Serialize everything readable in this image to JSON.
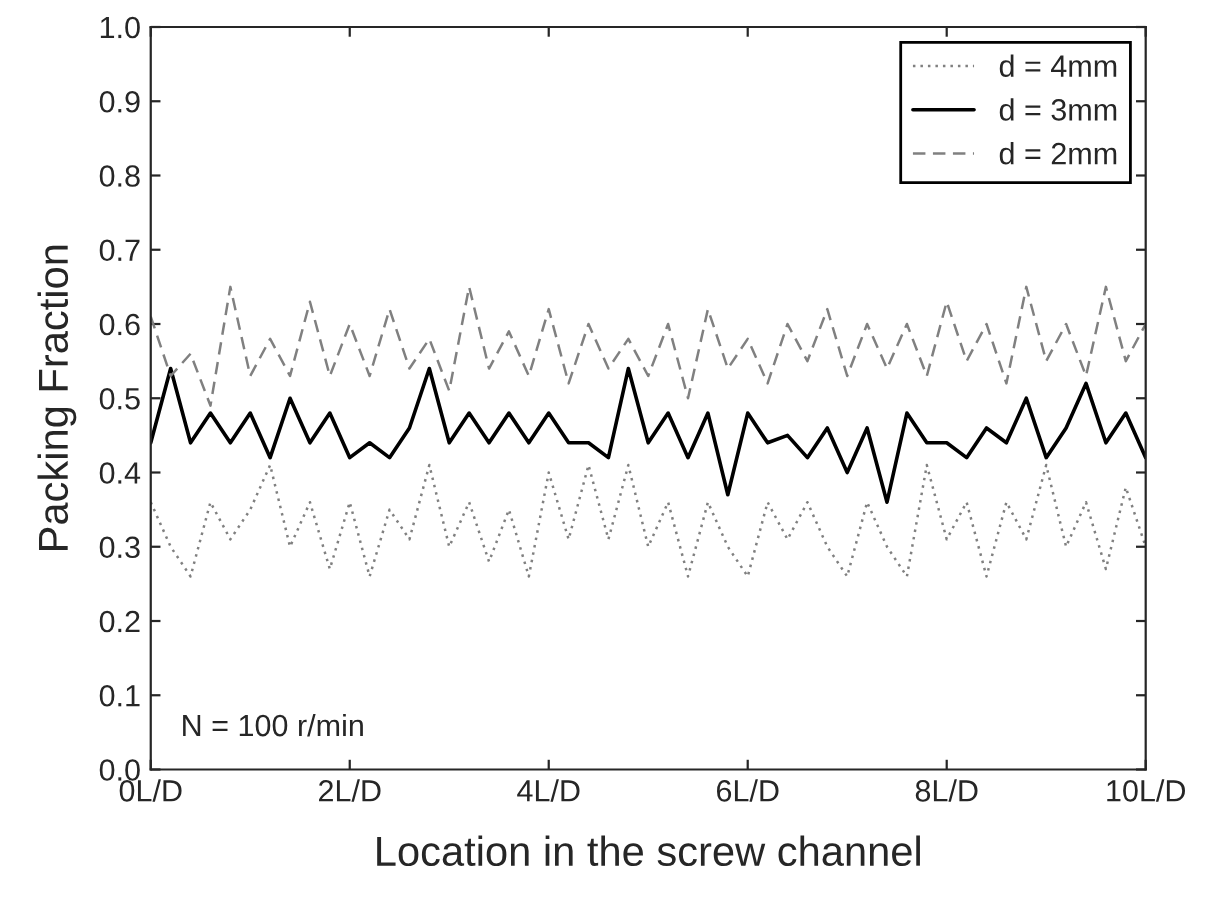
{
  "chart_data": {
    "type": "line",
    "xlabel": "Location in the screw channel",
    "ylabel": "Packing Fraction",
    "x": [
      0,
      0.2,
      0.4,
      0.6,
      0.8,
      1.0,
      1.2,
      1.4,
      1.6,
      1.8,
      2.0,
      2.2,
      2.4,
      2.6,
      2.8,
      3.0,
      3.2,
      3.4,
      3.6,
      3.8,
      4.0,
      4.2,
      4.4,
      4.6,
      4.8,
      5.0,
      5.2,
      5.4,
      5.6,
      5.8,
      6.0,
      6.2,
      6.4,
      6.6,
      6.8,
      7.0,
      7.2,
      7.4,
      7.6,
      7.8,
      8.0,
      8.2,
      8.4,
      8.6,
      8.8,
      9.0,
      9.2,
      9.4,
      9.6,
      9.8,
      10.0
    ],
    "series": [
      {
        "name": "d = 4mm",
        "color": "#808080",
        "line_style": "dotted",
        "values": [
          0.36,
          0.3,
          0.26,
          0.36,
          0.31,
          0.35,
          0.41,
          0.3,
          0.36,
          0.27,
          0.36,
          0.26,
          0.35,
          0.31,
          0.41,
          0.3,
          0.36,
          0.28,
          0.35,
          0.26,
          0.4,
          0.31,
          0.41,
          0.31,
          0.41,
          0.3,
          0.36,
          0.26,
          0.36,
          0.3,
          0.26,
          0.36,
          0.31,
          0.36,
          0.3,
          0.26,
          0.36,
          0.3,
          0.26,
          0.41,
          0.31,
          0.36,
          0.26,
          0.36,
          0.31,
          0.41,
          0.3,
          0.36,
          0.27,
          0.38,
          0.3
        ]
      },
      {
        "name": "d = 3mm",
        "color": "#000000",
        "line_style": "solid",
        "values": [
          0.44,
          0.54,
          0.44,
          0.48,
          0.44,
          0.48,
          0.42,
          0.5,
          0.44,
          0.48,
          0.42,
          0.44,
          0.42,
          0.46,
          0.54,
          0.44,
          0.48,
          0.44,
          0.48,
          0.44,
          0.48,
          0.44,
          0.44,
          0.42,
          0.54,
          0.44,
          0.48,
          0.42,
          0.48,
          0.37,
          0.48,
          0.44,
          0.45,
          0.42,
          0.46,
          0.4,
          0.46,
          0.36,
          0.48,
          0.44,
          0.44,
          0.42,
          0.46,
          0.44,
          0.5,
          0.42,
          0.46,
          0.52,
          0.44,
          0.48,
          0.42
        ]
      },
      {
        "name": "d = 2mm",
        "color": "#808080",
        "line_style": "dashed",
        "values": [
          0.61,
          0.53,
          0.56,
          0.49,
          0.65,
          0.53,
          0.58,
          0.53,
          0.63,
          0.53,
          0.6,
          0.53,
          0.62,
          0.54,
          0.58,
          0.51,
          0.65,
          0.54,
          0.59,
          0.53,
          0.62,
          0.52,
          0.6,
          0.54,
          0.58,
          0.53,
          0.6,
          0.5,
          0.62,
          0.54,
          0.58,
          0.52,
          0.6,
          0.55,
          0.62,
          0.53,
          0.6,
          0.54,
          0.6,
          0.53,
          0.63,
          0.55,
          0.6,
          0.52,
          0.65,
          0.55,
          0.6,
          0.53,
          0.65,
          0.55,
          0.6
        ]
      }
    ],
    "xlim": [
      0,
      10
    ],
    "xticks": [
      {
        "value": 0,
        "label": "0L/D"
      },
      {
        "value": 2,
        "label": "2L/D"
      },
      {
        "value": 4,
        "label": "4L/D"
      },
      {
        "value": 6,
        "label": "6L/D"
      },
      {
        "value": 8,
        "label": "8L/D"
      },
      {
        "value": 10,
        "label": "10L/D"
      }
    ],
    "ylim": [
      0,
      1.0
    ],
    "yticks": [
      {
        "value": 0,
        "label": "0.0"
      },
      {
        "value": 0.1,
        "label": "0.1"
      },
      {
        "value": 0.2,
        "label": "0.2"
      },
      {
        "value": 0.3,
        "label": "0.3"
      },
      {
        "value": 0.4,
        "label": "0.4"
      },
      {
        "value": 0.5,
        "label": "0.5"
      },
      {
        "value": 0.6,
        "label": "0.6"
      },
      {
        "value": 0.7,
        "label": "0.7"
      },
      {
        "value": 0.8,
        "label": "0.8"
      },
      {
        "value": 0.9,
        "label": "0.9"
      },
      {
        "value": 1.0,
        "label": "1.0"
      }
    ],
    "annotations": [
      "N = 100 r/min"
    ],
    "legend": "top right",
    "grid": false
  }
}
